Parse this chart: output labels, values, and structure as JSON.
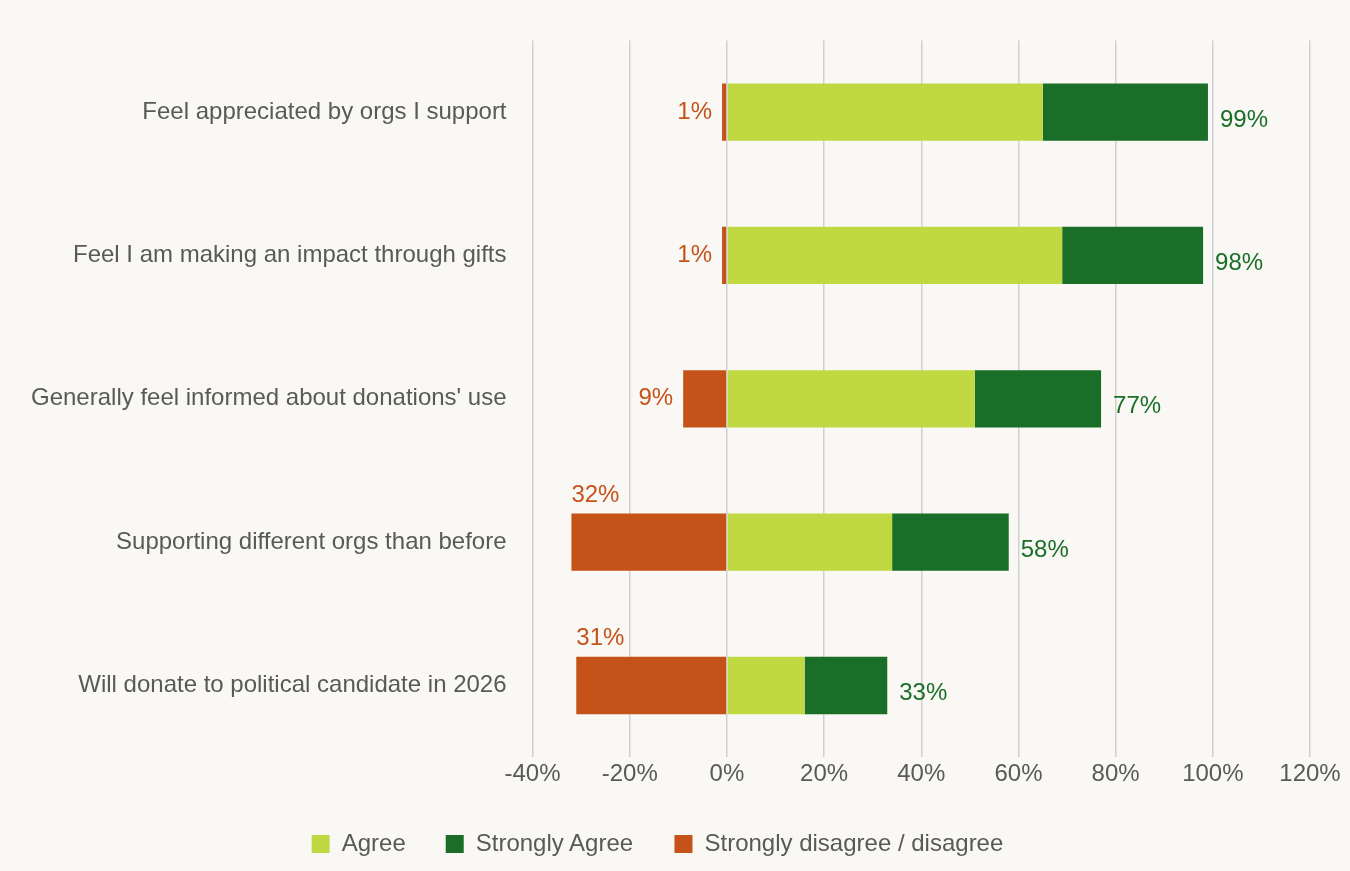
{
  "chart_data": {
    "type": "bar",
    "orientation": "horizontal",
    "stacked": true,
    "categories": [
      "Feel appreciated by orgs I support",
      "Feel I am making an impact through gifts",
      "Generally feel informed about donations' use",
      "Supporting different orgs than before",
      "Will donate to political candidate in 2026"
    ],
    "series": [
      {
        "name": "Agree",
        "color": "#c0d943",
        "values": [
          65,
          69,
          51,
          34,
          16
        ]
      },
      {
        "name": "Strongly Agree",
        "color": "#1a6e27",
        "values": [
          34,
          29,
          26,
          24,
          17
        ]
      },
      {
        "name": "Strongly disagree / disagree",
        "color": "#c55219",
        "values": [
          -1,
          -1,
          -9,
          -32,
          -31
        ]
      }
    ],
    "annotations": [
      {
        "text": "1%",
        "x": -1,
        "y": "Feel appreciated by orgs I support"
      },
      {
        "text": "1%",
        "x": -1,
        "y": "Feel I am making an impact through gifts"
      },
      {
        "text": "9%",
        "x": -9,
        "y": "Generally feel informed about donations' use"
      },
      {
        "text": "32%",
        "x": -32,
        "y": "Supporting different orgs than before"
      },
      {
        "text": "31%",
        "x": -31,
        "y": "Will donate to political candidate in 2026"
      },
      {
        "text": "99%",
        "x": 99,
        "y": "Feel appreciated by orgs I support"
      },
      {
        "text": "98%",
        "x": 98,
        "y": "Feel I am making an impact through gifts"
      },
      {
        "text": "77%",
        "x": 77,
        "y": "Generally feel informed about donations' use"
      },
      {
        "text": "58%",
        "x": 58,
        "y": "Supporting different orgs than before"
      },
      {
        "text": "33%",
        "x": 33,
        "y": "Will donate to political candidate in 2026"
      }
    ],
    "xlim": [
      -40,
      120
    ],
    "xticks": [
      {
        "value": -40,
        "label": "-40%"
      },
      {
        "value": -20,
        "label": "-20%"
      },
      {
        "value": 0,
        "label": "0%"
      },
      {
        "value": 20,
        "label": "20%"
      },
      {
        "value": 40,
        "label": "40%"
      },
      {
        "value": 60,
        "label": "60%"
      },
      {
        "value": 80,
        "label": "80%"
      },
      {
        "value": 100,
        "label": "100%"
      },
      {
        "value": 120,
        "label": "120%"
      }
    ],
    "grid": "x",
    "legend": "bottom"
  }
}
